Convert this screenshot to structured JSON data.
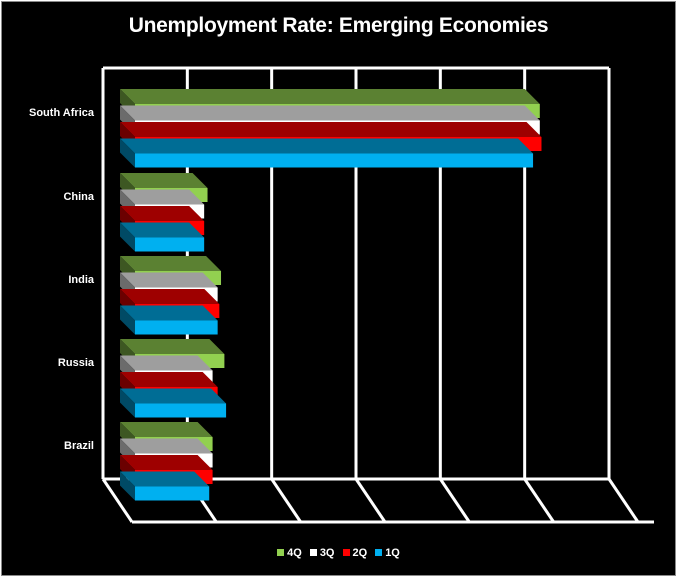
{
  "chart_data": {
    "type": "bar",
    "orientation": "horizontal",
    "style": "3d-clustered",
    "title": "Unemployment Rate: Emerging Economies",
    "xlabel": "",
    "ylabel": "",
    "categories": [
      "South Africa",
      "China",
      "India",
      "Russia",
      "Brazil"
    ],
    "series": [
      {
        "name": "4Q",
        "color": "#92d050",
        "values": [
          24.0,
          4.3,
          5.1,
          5.3,
          4.6
        ]
      },
      {
        "name": "3Q",
        "color": "#ffffff",
        "values": [
          24.0,
          4.1,
          4.9,
          4.6,
          4.6
        ]
      },
      {
        "name": "2Q",
        "color": "#ff0000",
        "values": [
          24.1,
          4.1,
          5.0,
          4.9,
          4.6
        ]
      },
      {
        "name": "1Q",
        "color": "#00b0f0",
        "values": [
          23.6,
          4.1,
          4.9,
          5.4,
          4.4
        ]
      }
    ],
    "xlim": [
      0,
      30
    ],
    "gridlines": "vertical",
    "legend": "bottom",
    "background": "#000000"
  }
}
